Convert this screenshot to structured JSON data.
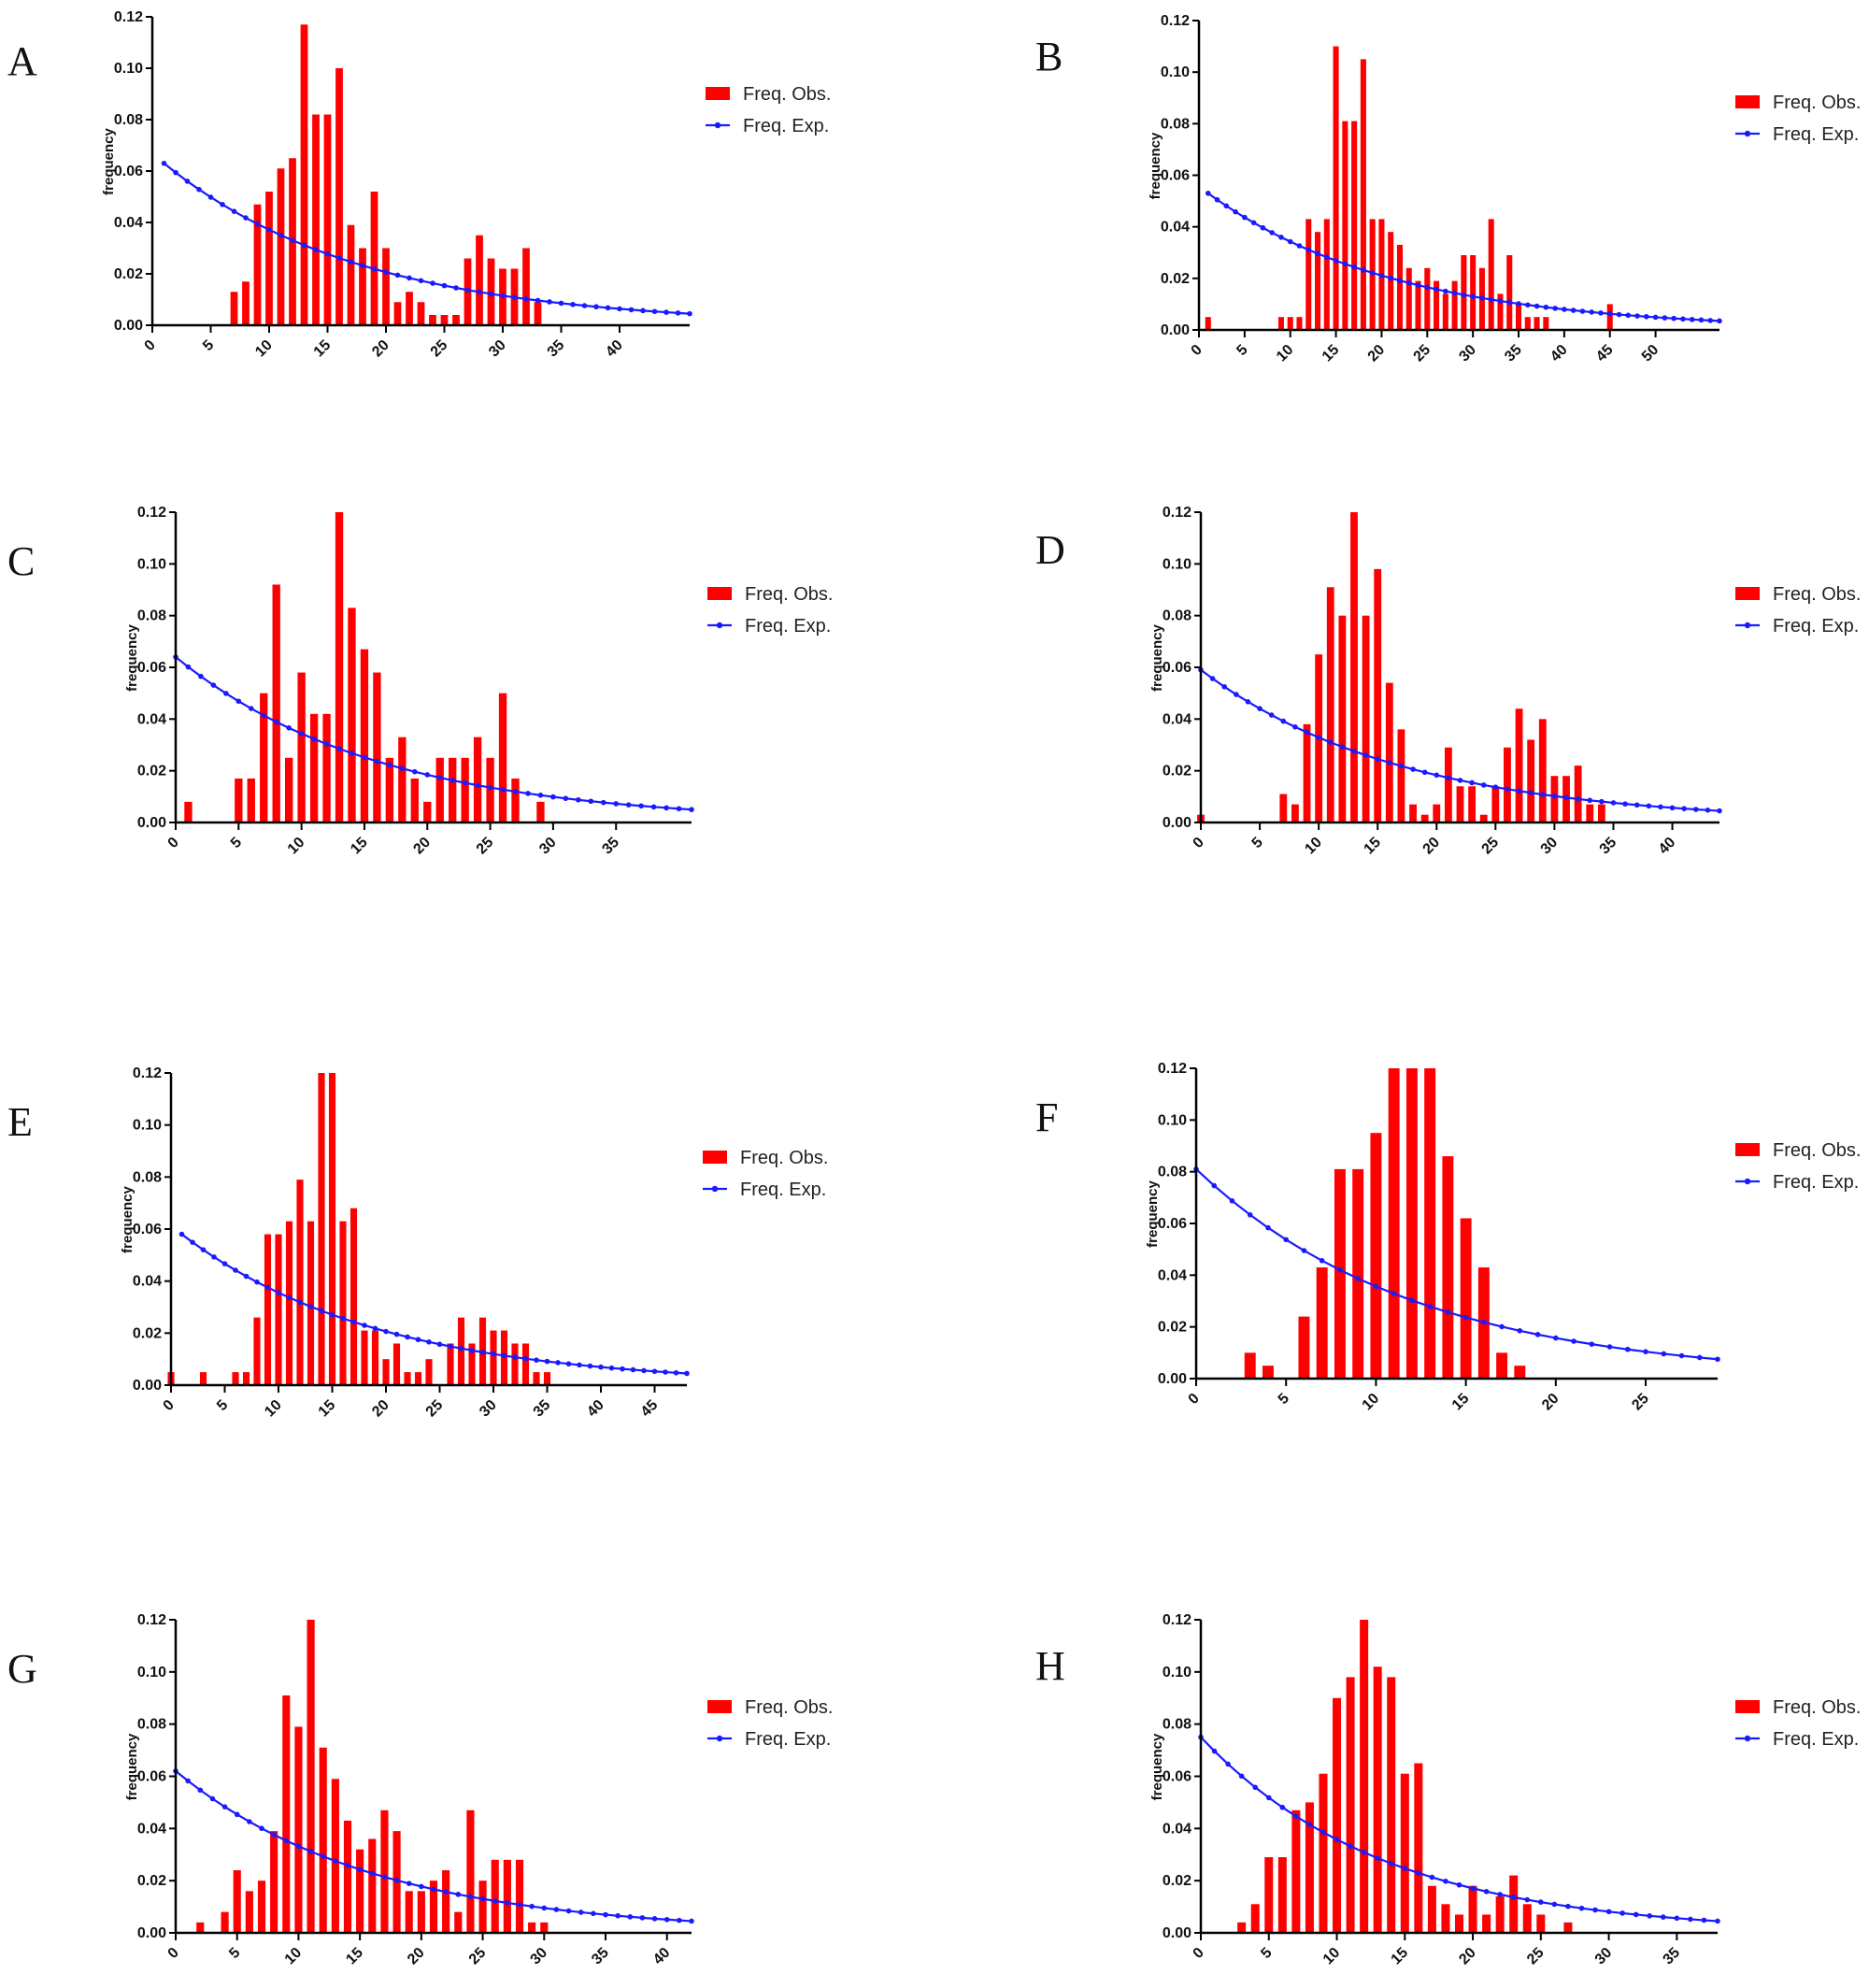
{
  "colors": {
    "observed": "#ff0000",
    "expected": "#1a1aff",
    "axis": "#000000"
  },
  "legend": {
    "observed": "Freq. Obs.",
    "expected": "Freq. Exp."
  },
  "chart_data": [
    {
      "panel": "A",
      "type": "bar",
      "ylabel": "frequency",
      "xlim": [
        0,
        46
      ],
      "ylim": [
        0,
        0.12
      ],
      "xticks": [
        0,
        5,
        10,
        15,
        20,
        25,
        30,
        35,
        40
      ],
      "yticks": [
        0,
        0.02,
        0.04,
        0.06,
        0.08,
        0.1,
        0.12
      ],
      "ytick_labels": [
        "0.00",
        "0.02",
        "0.04",
        "0.06",
        "0.08",
        "0.10",
        "0.12"
      ],
      "observed": {
        "x": [
          7,
          8,
          9,
          10,
          11,
          12,
          13,
          14,
          15,
          16,
          17,
          18,
          19,
          20,
          21,
          22,
          23,
          24,
          25,
          26,
          27,
          28,
          29,
          30,
          31,
          32,
          33
        ],
        "values": [
          0.013,
          0.017,
          0.047,
          0.052,
          0.061,
          0.065,
          0.117,
          0.082,
          0.082,
          0.1,
          0.039,
          0.03,
          0.052,
          0.03,
          0.009,
          0.013,
          0.009,
          0.004,
          0.004,
          0.004,
          0.026,
          0.035,
          0.026,
          0.022,
          0.022,
          0.03,
          0.009
        ]
      },
      "expected": {
        "x_start": 1,
        "x_end": 46,
        "start": 0.063,
        "end": 0.0045
      }
    },
    {
      "panel": "B",
      "type": "bar",
      "ylabel": "frequency",
      "xlim": [
        0,
        57
      ],
      "ylim": [
        0,
        0.12
      ],
      "xticks": [
        0,
        5,
        10,
        15,
        20,
        25,
        30,
        35,
        40,
        45,
        50
      ],
      "yticks": [
        0,
        0.02,
        0.04,
        0.06,
        0.08,
        0.1,
        0.12
      ],
      "ytick_labels": [
        "0.00",
        "0.02",
        "0.04",
        "0.06",
        "0.08",
        "0.10",
        "0.12"
      ],
      "observed": {
        "x": [
          1,
          9,
          10,
          11,
          12,
          13,
          14,
          15,
          16,
          17,
          18,
          19,
          20,
          21,
          22,
          23,
          24,
          25,
          26,
          27,
          28,
          29,
          30,
          31,
          32,
          33,
          34,
          35,
          36,
          37,
          38,
          45
        ],
        "values": [
          0.005,
          0.005,
          0.005,
          0.005,
          0.043,
          0.038,
          0.043,
          0.11,
          0.081,
          0.081,
          0.105,
          0.043,
          0.043,
          0.038,
          0.033,
          0.024,
          0.019,
          0.024,
          0.019,
          0.014,
          0.019,
          0.029,
          0.029,
          0.024,
          0.043,
          0.014,
          0.029,
          0.01,
          0.005,
          0.005,
          0.005,
          0.01
        ]
      },
      "expected": {
        "x_start": 1,
        "x_end": 57,
        "start": 0.053,
        "end": 0.0035
      }
    },
    {
      "panel": "C",
      "type": "bar",
      "ylabel": "frequency",
      "xlim": [
        0,
        41
      ],
      "ylim": [
        0,
        0.12
      ],
      "xticks": [
        0,
        5,
        10,
        15,
        20,
        25,
        30,
        35
      ],
      "yticks": [
        0,
        0.02,
        0.04,
        0.06,
        0.08,
        0.1,
        0.12
      ],
      "ytick_labels": [
        "0.00",
        "0.02",
        "0.04",
        "0.06",
        "0.08",
        "0.10",
        "0.12"
      ],
      "observed": {
        "x": [
          1,
          5,
          6,
          7,
          8,
          9,
          10,
          11,
          12,
          13,
          14,
          15,
          16,
          17,
          18,
          19,
          20,
          21,
          22,
          23,
          24,
          25,
          26,
          27,
          28,
          29
        ],
        "values": [
          0.008,
          0.017,
          0.017,
          0.05,
          0.092,
          0.025,
          0.058,
          0.042,
          0.042,
          0.12,
          0.083,
          0.067,
          0.058,
          0.025,
          0.033,
          0.017,
          0.008,
          0.025,
          0.025,
          0.025,
          0.033,
          0.025,
          0.05,
          0.017,
          0.0,
          0.008
        ]
      },
      "expected": {
        "x_start": 0,
        "x_end": 41,
        "start": 0.064,
        "end": 0.005
      }
    },
    {
      "panel": "D",
      "type": "bar",
      "ylabel": "frequency",
      "xlim": [
        0,
        44
      ],
      "ylim": [
        0,
        0.12
      ],
      "xticks": [
        0,
        5,
        10,
        15,
        20,
        25,
        30,
        35,
        40
      ],
      "yticks": [
        0,
        0.02,
        0.04,
        0.06,
        0.08,
        0.1,
        0.12
      ],
      "ytick_labels": [
        "0.00",
        "0.02",
        "0.04",
        "0.06",
        "0.08",
        "0.10",
        "0.12"
      ],
      "observed": {
        "x": [
          0,
          7,
          8,
          9,
          10,
          11,
          12,
          13,
          14,
          15,
          16,
          17,
          18,
          19,
          20,
          21,
          22,
          23,
          24,
          25,
          26,
          27,
          28,
          29,
          30,
          31,
          32,
          33,
          34
        ],
        "values": [
          0.003,
          0.011,
          0.007,
          0.038,
          0.065,
          0.091,
          0.08,
          0.12,
          0.08,
          0.098,
          0.054,
          0.036,
          0.007,
          0.003,
          0.007,
          0.029,
          0.014,
          0.014,
          0.003,
          0.014,
          0.029,
          0.044,
          0.032,
          0.04,
          0.018,
          0.018,
          0.022,
          0.007,
          0.007
        ]
      },
      "expected": {
        "x_start": 0,
        "x_end": 44,
        "start": 0.059,
        "end": 0.0045
      }
    },
    {
      "panel": "E",
      "type": "bar",
      "ylabel": "frequency",
      "xlim": [
        0,
        48
      ],
      "ylim": [
        0,
        0.12
      ],
      "xticks": [
        0,
        5,
        10,
        15,
        20,
        25,
        30,
        35,
        40,
        45
      ],
      "yticks": [
        0,
        0.02,
        0.04,
        0.06,
        0.08,
        0.1,
        0.12
      ],
      "ytick_labels": [
        "0.00",
        "0.02",
        "0.04",
        "0.06",
        "0.08",
        "0.10",
        "0.12"
      ],
      "observed": {
        "x": [
          0,
          3,
          6,
          7,
          8,
          9,
          10,
          11,
          12,
          13,
          14,
          15,
          16,
          17,
          18,
          19,
          20,
          21,
          22,
          23,
          24,
          25,
          26,
          27,
          28,
          29,
          30,
          31,
          32,
          33,
          34,
          35,
          36
        ],
        "values": [
          0.005,
          0.005,
          0.005,
          0.005,
          0.026,
          0.058,
          0.058,
          0.063,
          0.079,
          0.063,
          0.12,
          0.12,
          0.063,
          0.068,
          0.021,
          0.021,
          0.01,
          0.016,
          0.005,
          0.005,
          0.01,
          0.0,
          0.016,
          0.026,
          0.016,
          0.026,
          0.021,
          0.021,
          0.016,
          0.016,
          0.005,
          0.005,
          0.0
        ]
      },
      "expected": {
        "x_start": 1,
        "x_end": 48,
        "start": 0.058,
        "end": 0.0045
      }
    },
    {
      "panel": "F",
      "type": "bar",
      "ylabel": "frequency",
      "xlim": [
        0,
        29
      ],
      "ylim": [
        0,
        0.12
      ],
      "xticks": [
        0,
        5,
        10,
        15,
        20,
        25
      ],
      "yticks": [
        0,
        0.02,
        0.04,
        0.06,
        0.08,
        0.1,
        0.12
      ],
      "ytick_labels": [
        "0.00",
        "0.02",
        "0.04",
        "0.06",
        "0.08",
        "0.10",
        "0.12"
      ],
      "observed": {
        "x": [
          3,
          4,
          6,
          7,
          8,
          9,
          10,
          11,
          12,
          13,
          14,
          15,
          16,
          17,
          18
        ],
        "values": [
          0.01,
          0.005,
          0.024,
          0.043,
          0.081,
          0.081,
          0.095,
          0.12,
          0.12,
          0.12,
          0.086,
          0.062,
          0.043,
          0.01,
          0.005
        ]
      },
      "expected": {
        "x_start": 0,
        "x_end": 29,
        "start": 0.081,
        "end": 0.0075
      }
    },
    {
      "panel": "G",
      "type": "bar",
      "ylabel": "frequency",
      "xlim": [
        0,
        42
      ],
      "ylim": [
        0,
        0.12
      ],
      "xticks": [
        0,
        5,
        10,
        15,
        20,
        25,
        30,
        35,
        40
      ],
      "yticks": [
        0,
        0.02,
        0.04,
        0.06,
        0.08,
        0.1,
        0.12
      ],
      "ytick_labels": [
        "0.00",
        "0.02",
        "0.04",
        "0.06",
        "0.08",
        "0.10",
        "0.12"
      ],
      "observed": {
        "x": [
          2,
          4,
          5,
          6,
          7,
          8,
          9,
          10,
          11,
          12,
          13,
          14,
          15,
          16,
          17,
          18,
          19,
          20,
          21,
          22,
          23,
          24,
          25,
          26,
          27,
          28,
          29,
          30,
          31
        ],
        "values": [
          0.004,
          0.008,
          0.024,
          0.016,
          0.02,
          0.039,
          0.091,
          0.079,
          0.12,
          0.071,
          0.059,
          0.043,
          0.032,
          0.036,
          0.047,
          0.039,
          0.016,
          0.016,
          0.02,
          0.024,
          0.008,
          0.047,
          0.02,
          0.028,
          0.028,
          0.028,
          0.004,
          0.004,
          0.0
        ]
      },
      "expected": {
        "x_start": 0,
        "x_end": 42,
        "start": 0.062,
        "end": 0.0045
      }
    },
    {
      "panel": "H",
      "type": "bar",
      "ylabel": "frequency",
      "xlim": [
        0,
        38
      ],
      "ylim": [
        0,
        0.12
      ],
      "xticks": [
        0,
        5,
        10,
        15,
        20,
        25,
        30,
        35
      ],
      "yticks": [
        0,
        0.02,
        0.04,
        0.06,
        0.08,
        0.1,
        0.12
      ],
      "ytick_labels": [
        "0.00",
        "0.02",
        "0.04",
        "0.06",
        "0.08",
        "0.10",
        "0.12"
      ],
      "observed": {
        "x": [
          3,
          4,
          5,
          6,
          7,
          8,
          9,
          10,
          11,
          12,
          13,
          14,
          15,
          16,
          17,
          18,
          19,
          20,
          21,
          22,
          23,
          24,
          25,
          27
        ],
        "values": [
          0.004,
          0.011,
          0.029,
          0.029,
          0.047,
          0.05,
          0.061,
          0.09,
          0.098,
          0.12,
          0.102,
          0.098,
          0.061,
          0.065,
          0.018,
          0.011,
          0.007,
          0.018,
          0.007,
          0.014,
          0.022,
          0.011,
          0.007,
          0.004
        ]
      },
      "expected": {
        "x_start": 0,
        "x_end": 38,
        "start": 0.075,
        "end": 0.0045
      }
    }
  ]
}
